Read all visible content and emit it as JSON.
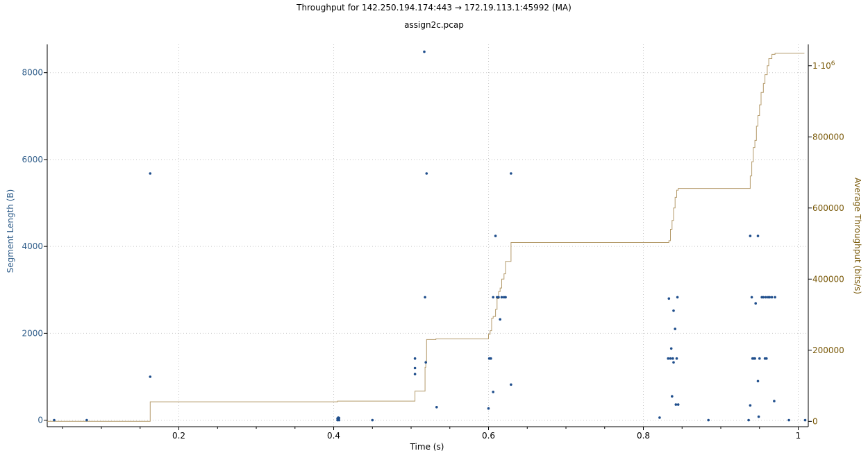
{
  "chart_data": {
    "type": "scatter",
    "title": "Throughput for 142.250.194.174:443 → 172.19.113.1:45992 (MA)",
    "subtitle": "assign2c.pcap",
    "xlabel": "Time (s)",
    "ylabel_left": "Segment Length (B)",
    "ylabel_right": "Average Throughput (bits/s)",
    "xlim": [
      0.03,
      1.013
    ],
    "ylim_left": [
      -150,
      8650
    ],
    "ylim_right": [
      -15000,
      1060000
    ],
    "grid": true,
    "colors": {
      "segments": "#1f4e8c",
      "throughput": "#b49a6a",
      "left_axis_text": "#2f5d8a",
      "right_axis_text": "#7a5a0a",
      "grid": "#c8c8c8"
    },
    "x_ticks": [
      {
        "value": 0.2,
        "label": "0.2"
      },
      {
        "value": 0.4,
        "label": "0.4"
      },
      {
        "value": 0.6,
        "label": "0.6"
      },
      {
        "value": 0.8,
        "label": "0.8"
      },
      {
        "value": 1.0,
        "label": "1"
      }
    ],
    "x_minor_ticks": [
      0.05,
      0.1,
      0.15,
      0.25,
      0.3,
      0.35,
      0.45,
      0.5,
      0.55,
      0.65,
      0.7,
      0.75,
      0.85,
      0.9,
      0.95
    ],
    "y_left_ticks": [
      {
        "value": 0,
        "label": "0"
      },
      {
        "value": 2000,
        "label": "2000"
      },
      {
        "value": 4000,
        "label": "4000"
      },
      {
        "value": 6000,
        "label": "6000"
      },
      {
        "value": 8000,
        "label": "8000"
      }
    ],
    "y_right_ticks": [
      {
        "value": 0,
        "label": "0"
      },
      {
        "value": 200000,
        "label": "200000"
      },
      {
        "value": 400000,
        "label": "400000"
      },
      {
        "value": 600000,
        "label": "600000"
      },
      {
        "value": 800000,
        "label": "800000"
      },
      {
        "value": 1000000,
        "label": "1·10",
        "sup": "6"
      }
    ],
    "series": [
      {
        "name": "",
        "axis": "left",
        "style": "points",
        "points": [
          [
            0.039,
            0
          ],
          [
            0.081,
            0
          ],
          [
            0.163,
            5680
          ],
          [
            0.163,
            1000
          ],
          [
            0.405,
            0
          ],
          [
            0.405,
            40
          ],
          [
            0.406,
            60
          ],
          [
            0.406,
            20
          ],
          [
            0.407,
            0
          ],
          [
            0.407,
            50
          ],
          [
            0.45,
            0
          ],
          [
            0.505,
            1420
          ],
          [
            0.505,
            1200
          ],
          [
            0.505,
            1060
          ],
          [
            0.517,
            8480
          ],
          [
            0.518,
            2830
          ],
          [
            0.519,
            1330
          ],
          [
            0.52,
            5680
          ],
          [
            0.533,
            300
          ],
          [
            0.6,
            270
          ],
          [
            0.601,
            1420
          ],
          [
            0.603,
            1420
          ],
          [
            0.606,
            2830
          ],
          [
            0.606,
            650
          ],
          [
            0.609,
            4240
          ],
          [
            0.611,
            2830
          ],
          [
            0.613,
            2830
          ],
          [
            0.615,
            2320
          ],
          [
            0.617,
            2830
          ],
          [
            0.62,
            2830
          ],
          [
            0.622,
            2830
          ],
          [
            0.629,
            5680
          ],
          [
            0.629,
            820
          ],
          [
            0.821,
            60
          ],
          [
            0.832,
            1420
          ],
          [
            0.833,
            2800
          ],
          [
            0.835,
            1420
          ],
          [
            0.836,
            1650
          ],
          [
            0.837,
            550
          ],
          [
            0.838,
            1420
          ],
          [
            0.839,
            2520
          ],
          [
            0.839,
            1330
          ],
          [
            0.841,
            2100
          ],
          [
            0.842,
            360
          ],
          [
            0.843,
            1420
          ],
          [
            0.844,
            2830
          ],
          [
            0.845,
            360
          ],
          [
            0.884,
            0
          ],
          [
            0.936,
            0
          ],
          [
            0.938,
            340
          ],
          [
            0.938,
            4240
          ],
          [
            0.94,
            2830
          ],
          [
            0.941,
            1420
          ],
          [
            0.943,
            1420
          ],
          [
            0.944,
            1420
          ],
          [
            0.945,
            2690
          ],
          [
            0.948,
            4240
          ],
          [
            0.948,
            900
          ],
          [
            0.949,
            80
          ],
          [
            0.95,
            1420
          ],
          [
            0.953,
            2830
          ],
          [
            0.955,
            2830
          ],
          [
            0.957,
            1420
          ],
          [
            0.958,
            2830
          ],
          [
            0.959,
            1420
          ],
          [
            0.961,
            2830
          ],
          [
            0.963,
            2830
          ],
          [
            0.966,
            2830
          ],
          [
            0.969,
            440
          ],
          [
            0.97,
            2830
          ],
          [
            0.988,
            0
          ],
          [
            1.009,
            0
          ]
        ]
      },
      {
        "name": "",
        "axis": "right",
        "style": "step",
        "points": [
          [
            0.03,
            0
          ],
          [
            0.163,
            0
          ],
          [
            0.163,
            55000
          ],
          [
            0.405,
            55000
          ],
          [
            0.405,
            57000
          ],
          [
            0.505,
            57000
          ],
          [
            0.505,
            85000
          ],
          [
            0.518,
            85000
          ],
          [
            0.518,
            152000
          ],
          [
            0.519,
            152000
          ],
          [
            0.519,
            170000
          ],
          [
            0.52,
            170000
          ],
          [
            0.52,
            230000
          ],
          [
            0.532,
            230000
          ],
          [
            0.532,
            232000
          ],
          [
            0.6,
            232000
          ],
          [
            0.6,
            245000
          ],
          [
            0.602,
            245000
          ],
          [
            0.602,
            255000
          ],
          [
            0.604,
            255000
          ],
          [
            0.604,
            290000
          ],
          [
            0.606,
            290000
          ],
          [
            0.606,
            295000
          ],
          [
            0.609,
            295000
          ],
          [
            0.609,
            315000
          ],
          [
            0.611,
            315000
          ],
          [
            0.611,
            345000
          ],
          [
            0.613,
            345000
          ],
          [
            0.613,
            365000
          ],
          [
            0.615,
            365000
          ],
          [
            0.615,
            375000
          ],
          [
            0.617,
            375000
          ],
          [
            0.617,
            400000
          ],
          [
            0.62,
            400000
          ],
          [
            0.62,
            415000
          ],
          [
            0.622,
            415000
          ],
          [
            0.622,
            450000
          ],
          [
            0.629,
            450000
          ],
          [
            0.629,
            503000
          ],
          [
            0.833,
            503000
          ],
          [
            0.833,
            508000
          ],
          [
            0.835,
            508000
          ],
          [
            0.835,
            540000
          ],
          [
            0.837,
            540000
          ],
          [
            0.837,
            565000
          ],
          [
            0.839,
            565000
          ],
          [
            0.839,
            600000
          ],
          [
            0.841,
            600000
          ],
          [
            0.841,
            630000
          ],
          [
            0.843,
            630000
          ],
          [
            0.843,
            650000
          ],
          [
            0.845,
            650000
          ],
          [
            0.845,
            655000
          ],
          [
            0.938,
            655000
          ],
          [
            0.938,
            690000
          ],
          [
            0.94,
            690000
          ],
          [
            0.94,
            730000
          ],
          [
            0.942,
            730000
          ],
          [
            0.942,
            770000
          ],
          [
            0.944,
            770000
          ],
          [
            0.944,
            790000
          ],
          [
            0.946,
            790000
          ],
          [
            0.946,
            830000
          ],
          [
            0.948,
            830000
          ],
          [
            0.948,
            860000
          ],
          [
            0.95,
            860000
          ],
          [
            0.95,
            890000
          ],
          [
            0.952,
            890000
          ],
          [
            0.952,
            925000
          ],
          [
            0.955,
            925000
          ],
          [
            0.955,
            950000
          ],
          [
            0.957,
            950000
          ],
          [
            0.957,
            975000
          ],
          [
            0.96,
            975000
          ],
          [
            0.96,
            1000000
          ],
          [
            0.962,
            1000000
          ],
          [
            0.962,
            1020000
          ],
          [
            0.966,
            1020000
          ],
          [
            0.966,
            1032000
          ],
          [
            0.97,
            1032000
          ],
          [
            0.97,
            1035000
          ],
          [
            1.008,
            1035000
          ]
        ]
      }
    ]
  }
}
